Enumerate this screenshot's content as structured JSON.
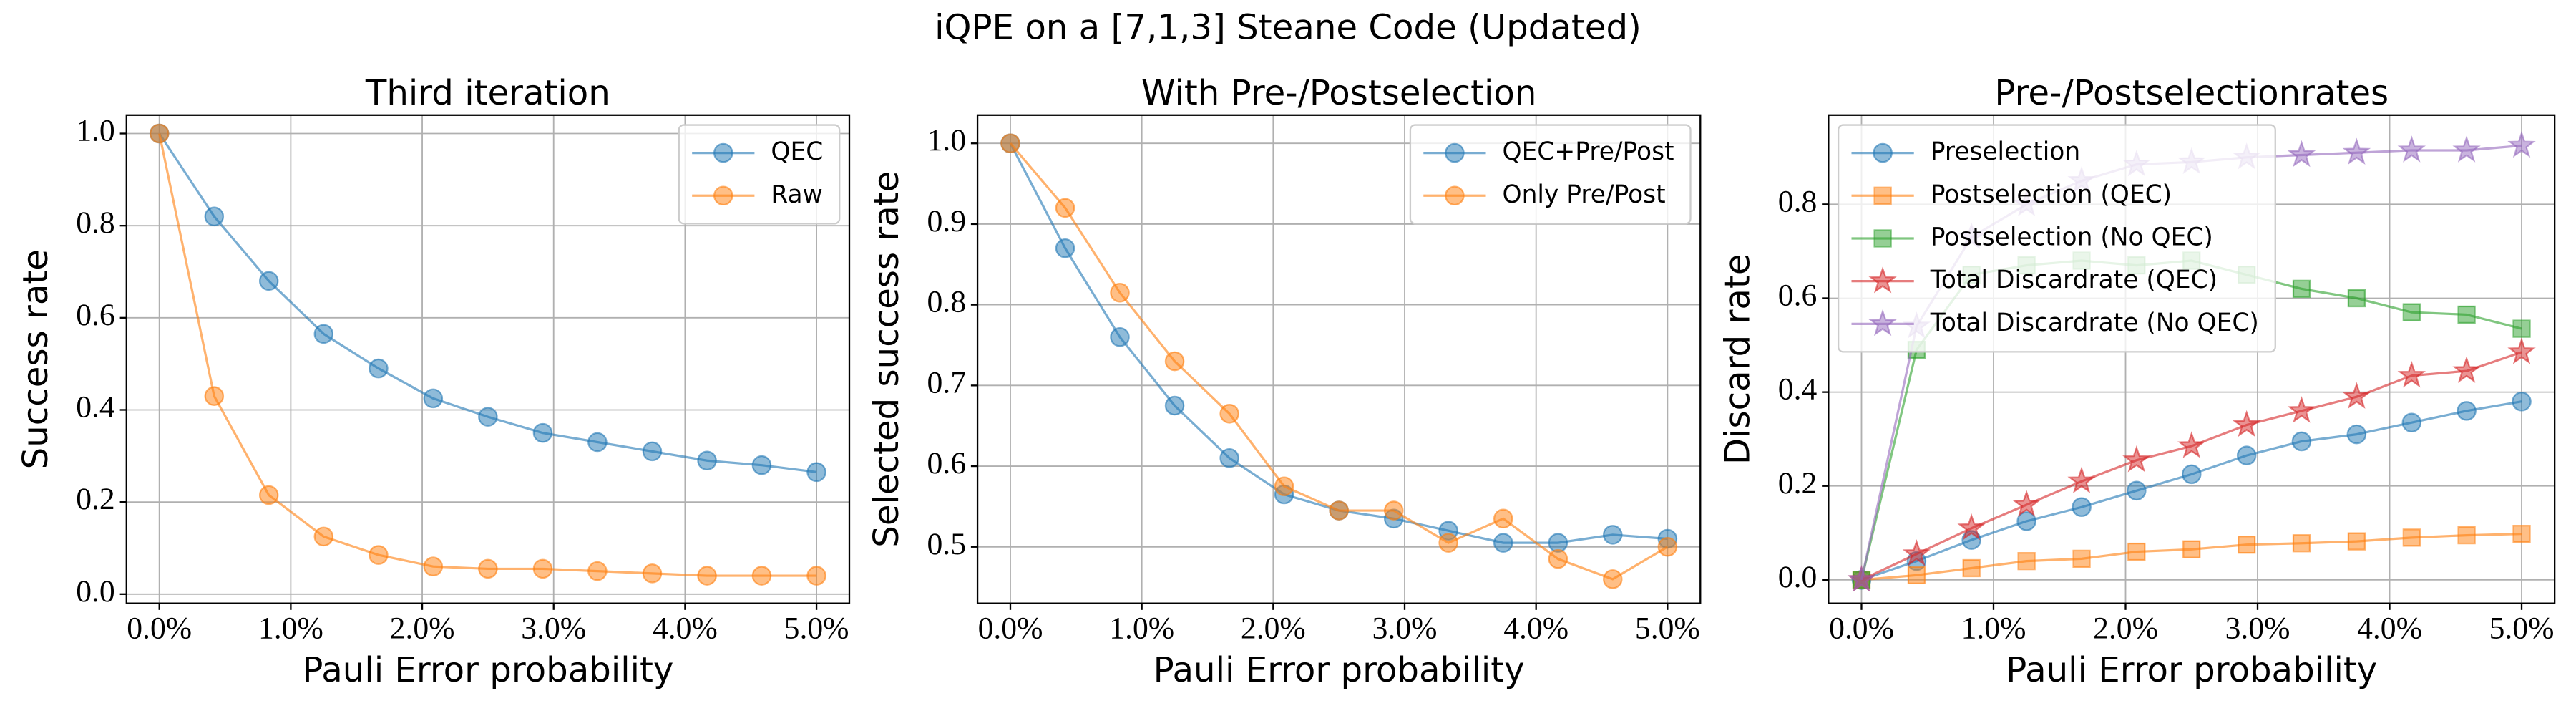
{
  "title": "iQPE on a [7,1,3] Steane Code (Updated)",
  "chart_data": [
    {
      "type": "line",
      "title": "Third iteration",
      "x_label": "Pauli Error probability",
      "y_label": "Success rate",
      "x": [
        0,
        0.417,
        0.833,
        1.25,
        1.667,
        2.083,
        2.5,
        2.917,
        3.333,
        3.75,
        4.167,
        4.583,
        5.0
      ],
      "series": [
        {
          "name": "QEC",
          "color": "#1f77b4",
          "marker": "circle",
          "values": [
            1.0,
            0.82,
            0.68,
            0.565,
            0.49,
            0.425,
            0.385,
            0.35,
            0.33,
            0.31,
            0.29,
            0.28,
            0.265
          ]
        },
        {
          "name": "Raw",
          "color": "#ff7f0e",
          "marker": "circle",
          "values": [
            1.0,
            0.43,
            0.215,
            0.125,
            0.085,
            0.06,
            0.055,
            0.055,
            0.05,
            0.045,
            0.04,
            0.04,
            0.04
          ]
        }
      ],
      "xlim": [
        -0.25,
        5.25
      ],
      "ylim": [
        -0.02,
        1.04
      ],
      "xticks": [
        {
          "value": 0,
          "label": "0.0%"
        },
        {
          "value": 1,
          "label": "1.0%"
        },
        {
          "value": 2,
          "label": "2.0%"
        },
        {
          "value": 3,
          "label": "3.0%"
        },
        {
          "value": 4,
          "label": "4.0%"
        },
        {
          "value": 5,
          "label": "5.0%"
        }
      ],
      "yticks": [
        {
          "value": 0,
          "label": "0.0"
        },
        0.2,
        0.4,
        0.6,
        0.8,
        {
          "value": 1,
          "label": "1.0"
        }
      ],
      "grid": true,
      "legend": "upper right"
    },
    {
      "type": "line",
      "title": "With Pre-/Postselection",
      "x_label": "Pauli Error probability",
      "y_label": "Selected success rate",
      "x": [
        0,
        0.417,
        0.833,
        1.25,
        1.667,
        2.083,
        2.5,
        2.917,
        3.333,
        3.75,
        4.167,
        4.583,
        5.0
      ],
      "series": [
        {
          "name": "QEC+Pre/Post",
          "color": "#1f77b4",
          "marker": "circle",
          "values": [
            1.0,
            0.87,
            0.76,
            0.675,
            0.61,
            0.565,
            0.545,
            0.535,
            0.52,
            0.505,
            0.505,
            0.515,
            0.51
          ]
        },
        {
          "name": "Only Pre/Post",
          "color": "#ff7f0e",
          "marker": "circle",
          "values": [
            1.0,
            0.92,
            0.815,
            0.73,
            0.665,
            0.575,
            0.545,
            0.545,
            0.505,
            0.535,
            0.485,
            0.46,
            0.5
          ]
        }
      ],
      "xlim": [
        -0.25,
        5.25
      ],
      "ylim": [
        0.43,
        1.035
      ],
      "xticks": [
        {
          "value": 0,
          "label": "0.0%"
        },
        {
          "value": 1,
          "label": "1.0%"
        },
        {
          "value": 2,
          "label": "2.0%"
        },
        {
          "value": 3,
          "label": "3.0%"
        },
        {
          "value": 4,
          "label": "4.0%"
        },
        {
          "value": 5,
          "label": "5.0%"
        }
      ],
      "yticks": [
        0.5,
        0.6,
        0.7,
        0.8,
        0.9,
        {
          "value": 1,
          "label": "1.0"
        }
      ],
      "grid": true,
      "legend": "upper right"
    },
    {
      "type": "line",
      "title": "Pre-/Postselectionrates",
      "x_label": "Pauli Error probability",
      "y_label": "Discard rate",
      "x": [
        0,
        0.417,
        0.833,
        1.25,
        1.667,
        2.083,
        2.5,
        2.917,
        3.333,
        3.75,
        4.167,
        4.583,
        5.0
      ],
      "series": [
        {
          "name": "Preselection",
          "color": "#1f77b4",
          "marker": "circle",
          "values": [
            0,
            0.04,
            0.085,
            0.125,
            0.155,
            0.19,
            0.225,
            0.265,
            0.295,
            0.31,
            0.335,
            0.36,
            0.38
          ]
        },
        {
          "name": "Postselection (QEC)",
          "color": "#ff7f0e",
          "marker": "square",
          "values": [
            0,
            0.01,
            0.025,
            0.04,
            0.045,
            0.06,
            0.065,
            0.075,
            0.078,
            0.082,
            0.09,
            0.095,
            0.098
          ]
        },
        {
          "name": "Postselection (No QEC)",
          "color": "#2ca02c",
          "marker": "square",
          "values": [
            0,
            0.49,
            0.65,
            0.67,
            0.68,
            0.67,
            0.68,
            0.65,
            0.62,
            0.6,
            0.57,
            0.565,
            0.535
          ]
        },
        {
          "name": "Total Discardrate (QEC)",
          "color": "#d62728",
          "marker": "star",
          "values": [
            0,
            0.055,
            0.11,
            0.16,
            0.21,
            0.255,
            0.285,
            0.33,
            0.36,
            0.39,
            0.435,
            0.445,
            0.485
          ]
        },
        {
          "name": "Total Discardrate (No QEC)",
          "color": "#9467bd",
          "marker": "star",
          "values": [
            0,
            0.54,
            0.73,
            0.8,
            0.85,
            0.885,
            0.89,
            0.9,
            0.905,
            0.91,
            0.915,
            0.915,
            0.925
          ]
        }
      ],
      "xlim": [
        -0.25,
        5.25
      ],
      "ylim": [
        -0.05,
        0.99
      ],
      "xticks": [
        {
          "value": 0,
          "label": "0.0%"
        },
        {
          "value": 1,
          "label": "1.0%"
        },
        {
          "value": 2,
          "label": "2.0%"
        },
        {
          "value": 3,
          "label": "3.0%"
        },
        {
          "value": 4,
          "label": "4.0%"
        },
        {
          "value": 5,
          "label": "5.0%"
        }
      ],
      "yticks": [
        {
          "value": 0,
          "label": "0.0"
        },
        0.2,
        0.4,
        0.6,
        0.8
      ],
      "grid": true,
      "legend": "upper left"
    }
  ]
}
